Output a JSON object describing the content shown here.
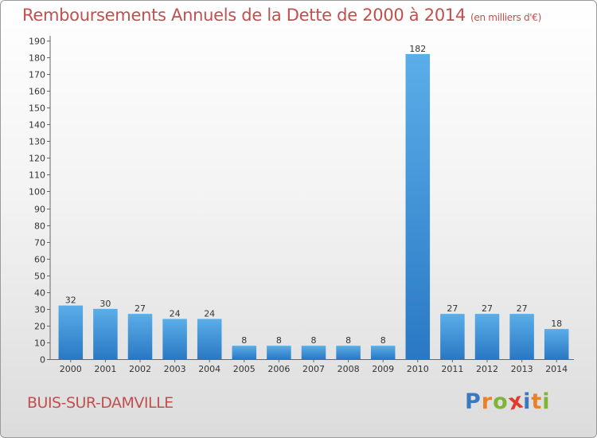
{
  "title": "Remboursements Annuels de la Dette de 2000 à 2014",
  "subtitle": "(en milliers d'€)",
  "commune": "BUIS-SUR-DAMVILLE",
  "logo": {
    "letters": [
      "P",
      "r",
      "o",
      "x",
      "i",
      "t",
      "i"
    ],
    "colors": [
      "#3a78c2",
      "#e9812b",
      "#7fb43a",
      "#e23b2e",
      "#3a78c2",
      "#e9812b",
      "#7fb43a"
    ]
  },
  "chart_data": {
    "type": "bar",
    "categories": [
      "2000",
      "2001",
      "2002",
      "2003",
      "2004",
      "2005",
      "2006",
      "2007",
      "2008",
      "2009",
      "2010",
      "2011",
      "2012",
      "2013",
      "2014"
    ],
    "values": [
      32,
      30,
      27,
      24,
      24,
      8,
      8,
      8,
      8,
      8,
      182,
      27,
      27,
      27,
      18
    ],
    "title": "Remboursements Annuels de la Dette de 2000 à 2014",
    "subtitle": "(en milliers d'€)",
    "ylim": [
      0,
      190
    ],
    "ytick_step": 10,
    "grid": false,
    "bar_color": "#3a8fd9"
  }
}
